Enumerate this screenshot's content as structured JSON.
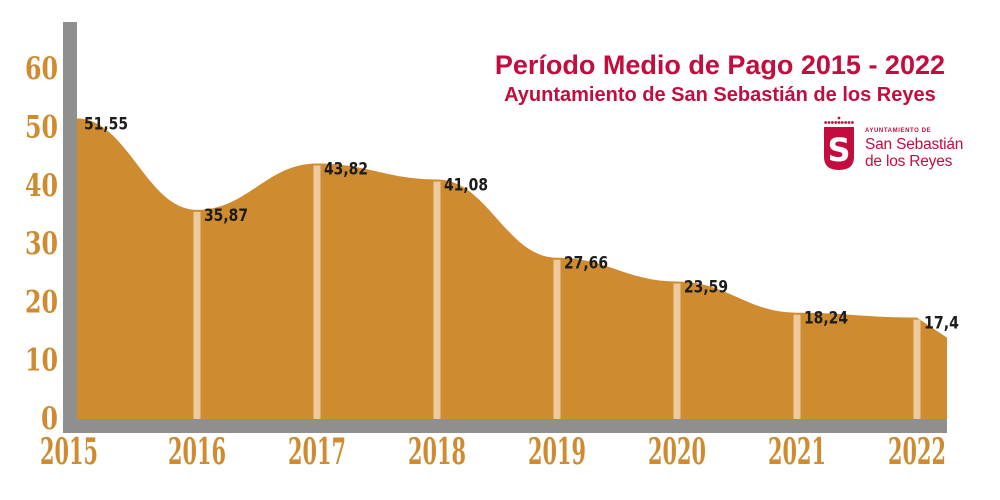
{
  "header": {
    "title": "Período Medio de Pago 2015 - 2022",
    "subtitle": "Ayuntamiento de San Sebastián de los Reyes"
  },
  "logo": {
    "org_label": "AYUNTAMIENTO DE",
    "name_line1": "San Sebastián",
    "name_line2": "de los Reyes",
    "monogram": "S"
  },
  "colors": {
    "area_ochre": "#CF8B2F",
    "tick_stripe_light": "#ECCA9E",
    "axis_gray": "#8F8F8F",
    "title_crimson": "#C30D3E",
    "data_label_black": "#1C1C1C"
  },
  "chart_data": {
    "type": "area",
    "title": "Período Medio de Pago 2015 - 2022",
    "subtitle": "Ayuntamiento de San Sebastián de los Reyes",
    "categories": [
      "2015",
      "2016",
      "2017",
      "2018",
      "2019",
      "2020",
      "2021",
      "2022"
    ],
    "values": [
      51.55,
      35.87,
      43.82,
      41.08,
      27.66,
      23.59,
      18.24,
      17.4
    ],
    "point_labels": [
      "51,55",
      "35,87",
      "43,82",
      "41,08",
      "27,66",
      "23,59",
      "18,24",
      "17,4"
    ],
    "ylim": [
      0,
      60
    ],
    "yticks": [
      0,
      10,
      20,
      30,
      40,
      50,
      60
    ],
    "xlabel": "",
    "ylabel": "",
    "grid": false,
    "legend": false,
    "decimal_separator": ",",
    "notes": "single ochre area series; light vertical stripe at each year; area extends slightly past 2022 sloping down"
  }
}
